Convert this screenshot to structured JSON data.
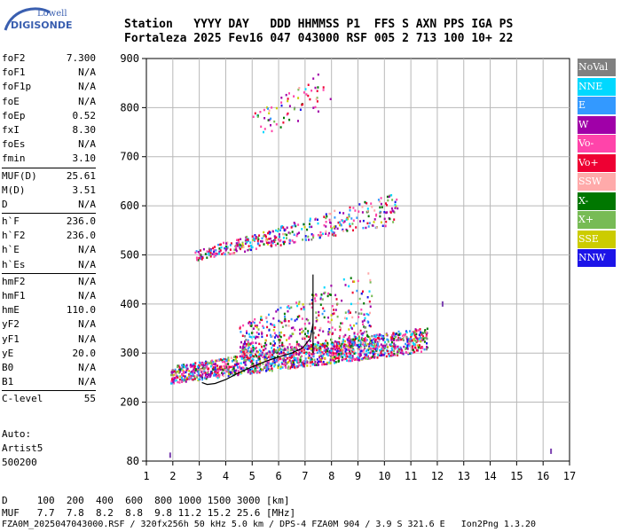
{
  "logo": {
    "line1": "Lowell",
    "line2": "DIGISONDE"
  },
  "header": {
    "labels": "Station   YYYY DAY   DDD HHMMSS P1  FFS S AXN PPS IGA PS",
    "values": "Fortaleza 2025 Fev16 047 043000 RSF 005 2 713 100 10+ 22"
  },
  "params": [
    [
      {
        "name": "foF2",
        "value": "7.300"
      },
      {
        "name": "foF1",
        "value": "N/A"
      },
      {
        "name": "foF1p",
        "value": "N/A"
      },
      {
        "name": "foE",
        "value": "N/A"
      },
      {
        "name": "foEp",
        "value": "0.52"
      },
      {
        "name": "fxI",
        "value": "8.30"
      },
      {
        "name": "foEs",
        "value": "N/A"
      },
      {
        "name": "fmin",
        "value": "3.10"
      }
    ],
    [
      {
        "name": "MUF(D)",
        "value": "25.61"
      },
      {
        "name": "M(D)",
        "value": "3.51"
      },
      {
        "name": "D",
        "value": "N/A"
      }
    ],
    [
      {
        "name": "h`F",
        "value": "236.0"
      },
      {
        "name": "h`F2",
        "value": "236.0"
      },
      {
        "name": "h`E",
        "value": "N/A"
      },
      {
        "name": "h`Es",
        "value": "N/A"
      }
    ],
    [
      {
        "name": "hmF2",
        "value": "N/A"
      },
      {
        "name": "hmF1",
        "value": "N/A"
      },
      {
        "name": "hmE",
        "value": "110.0"
      },
      {
        "name": "yF2",
        "value": "N/A"
      },
      {
        "name": "yF1",
        "value": "N/A"
      },
      {
        "name": "yE",
        "value": "20.0"
      },
      {
        "name": "B0",
        "value": "N/A"
      },
      {
        "name": "B1",
        "value": "N/A"
      }
    ],
    [
      {
        "name": "C-level",
        "value": "55"
      }
    ]
  ],
  "auto": {
    "line1": "Auto:",
    "line2": "Artist5",
    "line3": "500200"
  },
  "legend": [
    {
      "label": "NoVal",
      "color": "#808080"
    },
    {
      "label": "NNE",
      "color": "#00d8ff"
    },
    {
      "label": "E",
      "color": "#3399ff"
    },
    {
      "label": "W",
      "color": "#a000a8"
    },
    {
      "label": "Vo-",
      "color": "#ff44aa"
    },
    {
      "label": "Vo+",
      "color": "#ee0033"
    },
    {
      "label": "SSW",
      "color": "#ffaaaa"
    },
    {
      "label": "X-",
      "color": "#007700"
    },
    {
      "label": "X+",
      "color": "#77bb55"
    },
    {
      "label": "SSE",
      "color": "#cccc00"
    },
    {
      "label": "NNW",
      "color": "#1c14e8"
    }
  ],
  "dmuf": {
    "d_line": "D     100  200  400  600  800 1000 1500 3000 [km]",
    "muf_line": "MUF   7.7  7.8  8.2  8.8  9.8 11.2 15.2 25.6 [MHz]"
  },
  "footer": "FZA0M_2025047043000.RSF / 320fx256h 50 kHz 5.0 km / DPS-4 FZA0M 904 / 3.9 S 321.6 E   Ion2Png 1.3.20",
  "chart_data": {
    "type": "scatter",
    "xlim": [
      1,
      17
    ],
    "ylim": [
      80,
      900
    ],
    "x_ticks": [
      1,
      2,
      3,
      4,
      5,
      6,
      7,
      8,
      9,
      10,
      11,
      12,
      13,
      14,
      15,
      16,
      17
    ],
    "y_ticks": [
      80,
      200,
      300,
      400,
      500,
      600,
      700,
      800,
      900
    ],
    "grid": true,
    "legend_position": "right",
    "echo_regions": [
      {
        "name": "F-trace main",
        "x_range": [
          1.9,
          11.6
        ],
        "y_low": [
          240,
          305
        ],
        "y_high": [
          275,
          355
        ]
      },
      {
        "name": "F-trace spread",
        "x_range": [
          4.5,
          9.5
        ],
        "y_low": [
          300,
          320
        ],
        "y_high": [
          360,
          480
        ]
      },
      {
        "name": "second hop",
        "x_range": [
          2.8,
          10.5
        ],
        "y_low": [
          490,
          565
        ],
        "y_high": [
          510,
          630
        ]
      },
      {
        "name": "third hop",
        "x_range": [
          5.0,
          8.0
        ],
        "y_low": [
          740,
          800
        ],
        "y_high": [
          790,
          890
        ]
      }
    ],
    "trace_line": [
      [
        3.1,
        240
      ],
      [
        3.3,
        236
      ],
      [
        3.6,
        238
      ],
      [
        4.0,
        246
      ],
      [
        4.5,
        260
      ],
      [
        5.0,
        272
      ],
      [
        5.5,
        283
      ],
      [
        6.0,
        292
      ],
      [
        6.5,
        300
      ],
      [
        6.9,
        310
      ],
      [
        7.2,
        330
      ],
      [
        7.3,
        360
      ]
    ],
    "vertical_trace": {
      "x": 7.3,
      "y_range": [
        300,
        460
      ]
    },
    "isolated_points": [
      {
        "x": 1.9,
        "y": 92
      },
      {
        "x": 12.2,
        "y": 400
      },
      {
        "x": 16.3,
        "y": 100
      }
    ]
  }
}
